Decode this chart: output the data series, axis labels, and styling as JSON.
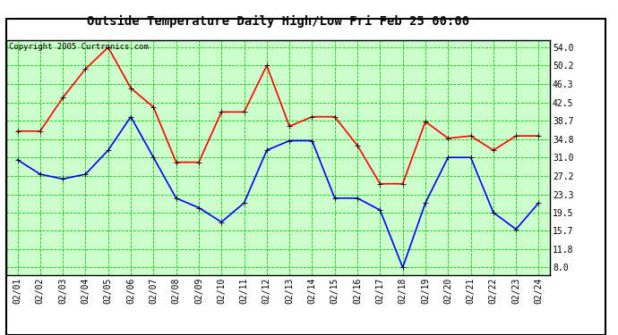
{
  "title": "Outside Temperature Daily High/Low Fri Feb 25 00:00",
  "copyright": "Copyright 2005 Curtronics.com",
  "x_labels": [
    "02/01",
    "02/02",
    "02/03",
    "02/04",
    "02/05",
    "02/06",
    "02/07",
    "02/08",
    "02/09",
    "02/10",
    "02/11",
    "02/12",
    "02/13",
    "02/14",
    "02/15",
    "02/16",
    "02/17",
    "02/18",
    "02/19",
    "02/20",
    "02/21",
    "02/22",
    "02/23",
    "02/24"
  ],
  "high_values": [
    36.5,
    36.5,
    43.5,
    49.5,
    54.0,
    45.5,
    41.5,
    30.0,
    30.0,
    40.5,
    40.5,
    50.2,
    37.5,
    39.5,
    39.5,
    33.5,
    25.5,
    25.5,
    38.5,
    35.0,
    35.5,
    32.5,
    35.5,
    35.5
  ],
  "low_values": [
    30.5,
    27.5,
    26.5,
    27.5,
    32.5,
    39.5,
    31.0,
    22.5,
    20.5,
    17.5,
    21.5,
    32.5,
    34.5,
    34.5,
    22.5,
    22.5,
    20.0,
    8.0,
    21.5,
    31.0,
    31.0,
    19.5,
    16.0,
    21.5
  ],
  "high_color": "#ff0000",
  "low_color": "#0000ff",
  "grid_color": "#00cc00",
  "bg_color": "#ccffcc",
  "border_color": "#000000",
  "title_color": "#000000",
  "y_ticks": [
    8.0,
    11.8,
    15.7,
    19.5,
    23.3,
    27.2,
    31.0,
    34.8,
    38.7,
    42.5,
    46.3,
    50.2,
    54.0
  ],
  "y_min": 6.5,
  "y_max": 55.5,
  "marker": "+",
  "title_fontsize": 10,
  "copyright_fontsize": 6.5,
  "tick_fontsize": 7
}
